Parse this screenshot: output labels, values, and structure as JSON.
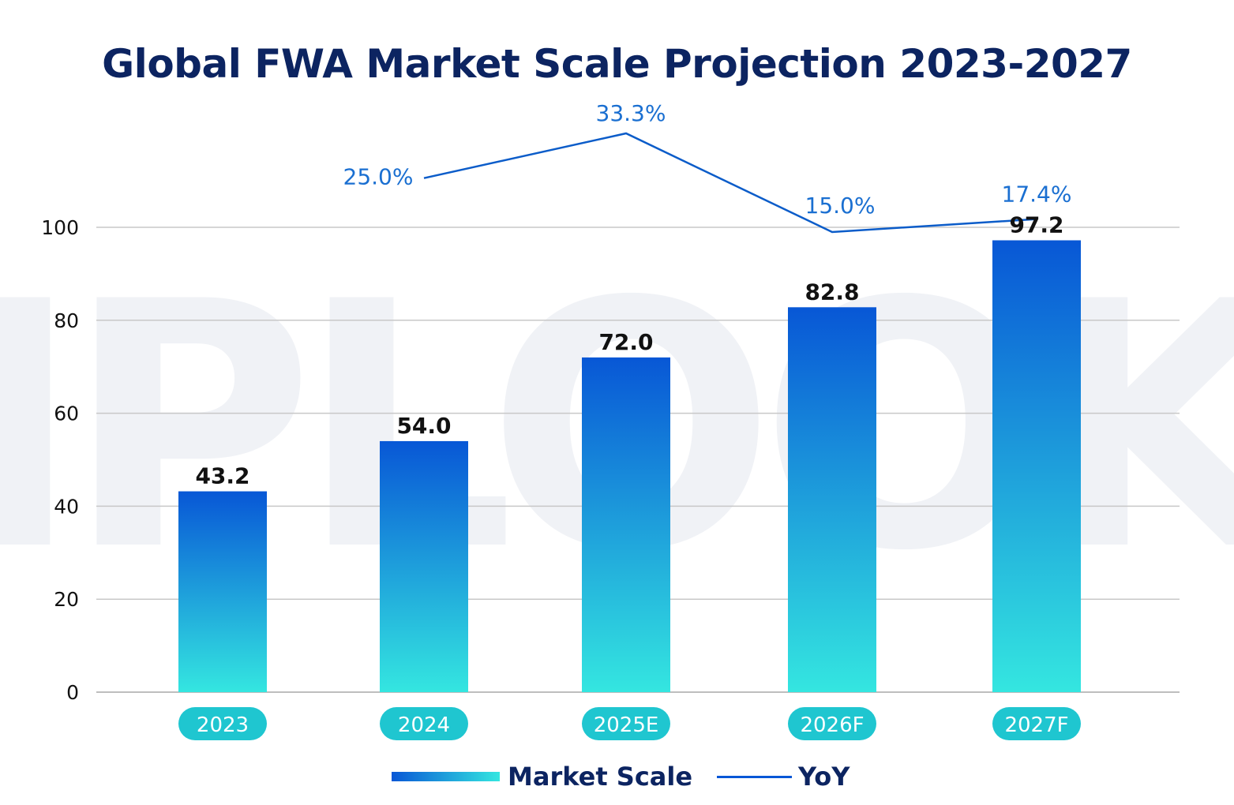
{
  "chart_data": {
    "type": "bar",
    "title": "Global FWA Market Scale Projection 2023-2027",
    "categories": [
      "2023",
      "2024",
      "2025E",
      "2026F",
      "2027F"
    ],
    "series": [
      {
        "name": "Market Scale",
        "type": "bar",
        "values": [
          43.2,
          54.0,
          72.0,
          82.8,
          97.2
        ],
        "labels": [
          "43.2",
          "54.0",
          "72.0",
          "82.8",
          "97.2"
        ]
      },
      {
        "name": "YoY",
        "type": "line",
        "values": [
          null,
          25.0,
          33.3,
          15.0,
          17.4
        ],
        "labels": [
          "",
          "25.0%",
          "33.3%",
          "15.0%",
          "17.4%"
        ]
      }
    ],
    "yticks": [
      "0",
      "20",
      "40",
      "60",
      "80",
      "100"
    ],
    "ylim": [
      0,
      100
    ],
    "grid": true,
    "legend": "bottom",
    "xlabel": "",
    "ylabel": ""
  },
  "colors": {
    "title": "#0c2461",
    "bar_top": "#0857d6",
    "bar_bottom": "#34e6e0",
    "line": "#0b5cc9",
    "yoy_label": "#1a6fd1",
    "category_pill": "#1fc6d0",
    "grid": "#c8c8c8",
    "watermark": "#f0f2f6"
  },
  "watermark_text": "IPLOOK",
  "legend": {
    "bar_label": "Market Scale",
    "line_label": "YoY"
  }
}
